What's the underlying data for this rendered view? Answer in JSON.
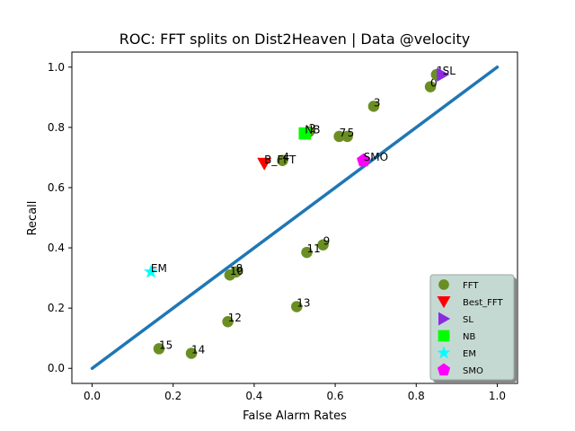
{
  "chart_data": {
    "type": "scatter",
    "title": "ROC: FFT splits on Dist2Heaven  |  Data @velocity",
    "xlabel": "False Alarm Rates",
    "ylabel": "Recall",
    "xlim": [
      -0.05,
      1.05
    ],
    "ylim": [
      -0.05,
      1.05
    ],
    "xticks": [
      "0.0",
      "0.2",
      "0.4",
      "0.6",
      "0.8",
      "1.0"
    ],
    "yticks": [
      "0.0",
      "0.2",
      "0.4",
      "0.6",
      "0.8",
      "1.0"
    ],
    "grid": false,
    "legend_position": "bottom-right",
    "diagonal": {
      "x": [
        0,
        1
      ],
      "y": [
        0,
        1
      ],
      "color": "#1f77b4"
    },
    "series": [
      {
        "name": "FFT",
        "marker": "circle",
        "color": "#6b8e23",
        "points": [
          {
            "label": "0",
            "x": 0.835,
            "y": 0.935
          },
          {
            "label": "1",
            "x": 0.85,
            "y": 0.975
          },
          {
            "label": "2",
            "x": 0.535,
            "y": 0.785
          },
          {
            "label": "3",
            "x": 0.695,
            "y": 0.87
          },
          {
            "label": "4",
            "x": 0.47,
            "y": 0.69
          },
          {
            "label": "5",
            "x": 0.63,
            "y": 0.77
          },
          {
            "label": "7",
            "x": 0.61,
            "y": 0.77
          },
          {
            "label": "8",
            "x": 0.355,
            "y": 0.32
          },
          {
            "label": "9",
            "x": 0.57,
            "y": 0.41
          },
          {
            "label": "10",
            "x": 0.34,
            "y": 0.31
          },
          {
            "label": "11",
            "x": 0.53,
            "y": 0.385
          },
          {
            "label": "12",
            "x": 0.335,
            "y": 0.155
          },
          {
            "label": "13",
            "x": 0.505,
            "y": 0.205
          },
          {
            "label": "14",
            "x": 0.245,
            "y": 0.05
          },
          {
            "label": "15",
            "x": 0.165,
            "y": 0.065
          }
        ]
      },
      {
        "name": "Best_FFT",
        "marker": "triangle-down",
        "color": "#ff0000",
        "points": [
          {
            "label": "B_FFT",
            "x": 0.425,
            "y": 0.68
          }
        ]
      },
      {
        "name": "SL",
        "marker": "triangle-right",
        "color": "#8a2be2",
        "points": [
          {
            "label": "SL",
            "x": 0.865,
            "y": 0.975
          }
        ]
      },
      {
        "name": "NB",
        "marker": "square",
        "color": "#00ff00",
        "points": [
          {
            "label": "NB",
            "x": 0.525,
            "y": 0.78
          }
        ]
      },
      {
        "name": "EM",
        "marker": "star",
        "color": "#00ffff",
        "points": [
          {
            "label": "EM",
            "x": 0.145,
            "y": 0.32
          }
        ]
      },
      {
        "name": "SMO",
        "marker": "pentagon",
        "color": "#ff00ff",
        "points": [
          {
            "label": "SMO",
            "x": 0.67,
            "y": 0.69
          }
        ]
      }
    ]
  }
}
